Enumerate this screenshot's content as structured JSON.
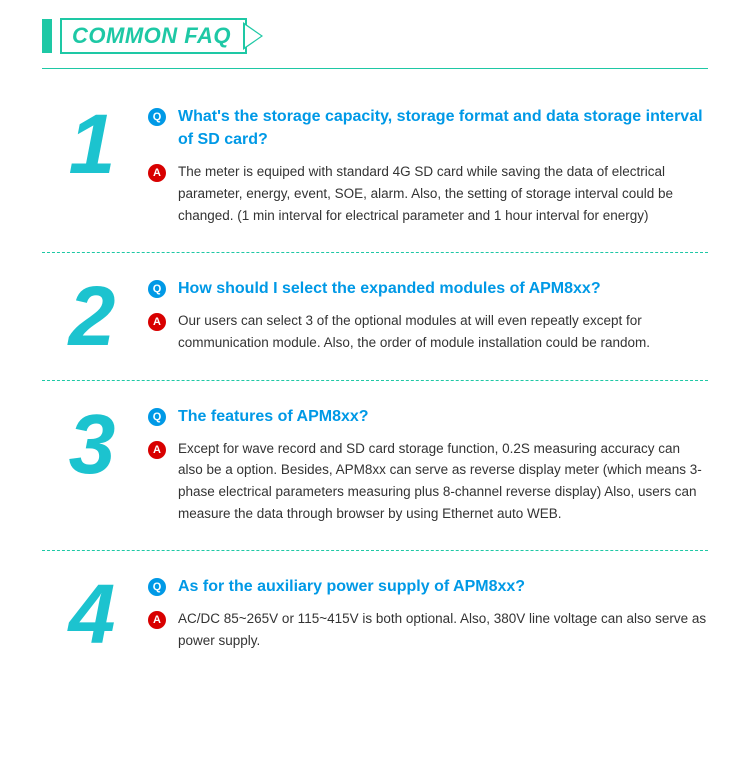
{
  "header": {
    "title": "COMMON FAQ"
  },
  "badges": {
    "q": "Q",
    "a": "A"
  },
  "colors": {
    "accent_green": "#1ec8a5",
    "number_cyan": "#1cc3cf",
    "q_blue": "#0099e6",
    "a_red": "#d80000",
    "text": "#333333"
  },
  "faq": [
    {
      "num": "1",
      "question": "What's the storage capacity, storage format and data storage interval of SD card?",
      "answer": "The meter is equiped with standard 4G SD card while saving the data of electrical parameter, energy, event, SOE, alarm. Also, the setting of storage interval could be changed. (1 min interval for electrical parameter and 1 hour interval for energy)"
    },
    {
      "num": "2",
      "question": "How should I select the expanded modules of APM8xx?",
      "answer": "Our users can select 3 of the optional modules at will even repeatly except for communication module. Also, the order of module installation could be random."
    },
    {
      "num": "3",
      "question": "The features of APM8xx?",
      "answer": "Except for wave record and SD card storage function, 0.2S measuring accuracy can also be a option. Besides, APM8xx can serve as reverse display meter (which means 3-phase electrical parameters measuring plus 8-channel reverse display) Also, users can measure the data through browser by using Ethernet auto WEB."
    },
    {
      "num": "4",
      "question": "As for the auxiliary power supply of APM8xx?",
      "answer": "AC/DC 85~265V or 115~415V is both optional. Also, 380V  line voltage can also serve as power supply."
    }
  ]
}
